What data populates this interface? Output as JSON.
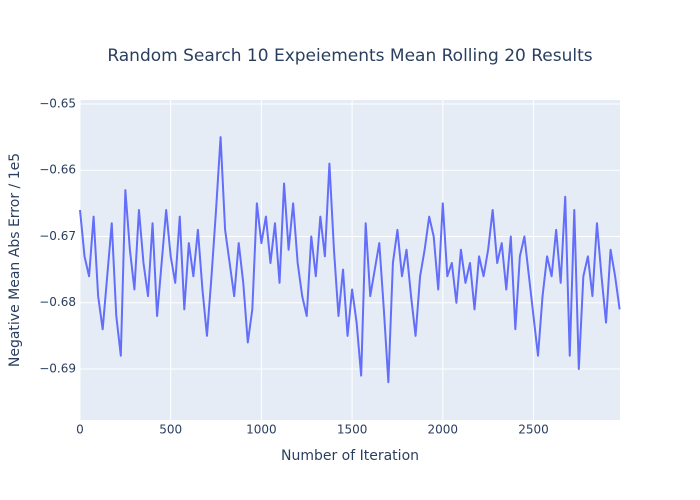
{
  "chart_data": {
    "type": "line",
    "title": "Random Search 10 Expeiements Mean Rolling 20 Results",
    "x_label": "Number of Iteration",
    "y_label": "Negative Mean Abs Error / 1e5",
    "xlim": [
      0,
      2977
    ],
    "ylim": [
      -0.6977,
      -0.6494
    ],
    "xticks": [
      0,
      500,
      1000,
      1500,
      2000,
      2500
    ],
    "yticks": [
      {
        "value": -0.65,
        "label": "−0.65"
      },
      {
        "value": -0.66,
        "label": "−0.66"
      },
      {
        "value": -0.67,
        "label": "−0.67"
      },
      {
        "value": -0.68,
        "label": "−0.68"
      },
      {
        "value": -0.69,
        "label": "−0.69"
      }
    ],
    "grid": true,
    "x": [
      0,
      25,
      50,
      75,
      100,
      125,
      150,
      175,
      200,
      225,
      250,
      275,
      300,
      325,
      350,
      375,
      400,
      425,
      450,
      475,
      500,
      525,
      550,
      575,
      600,
      625,
      650,
      675,
      700,
      725,
      750,
      775,
      800,
      825,
      850,
      875,
      900,
      925,
      950,
      975,
      1000,
      1025,
      1050,
      1075,
      1100,
      1125,
      1150,
      1175,
      1200,
      1225,
      1250,
      1275,
      1300,
      1325,
      1350,
      1375,
      1400,
      1425,
      1450,
      1475,
      1500,
      1525,
      1550,
      1575,
      1600,
      1625,
      1650,
      1675,
      1700,
      1725,
      1750,
      1775,
      1800,
      1825,
      1850,
      1875,
      1900,
      1925,
      1950,
      1975,
      2000,
      2025,
      2050,
      2075,
      2100,
      2125,
      2150,
      2175,
      2200,
      2225,
      2250,
      2275,
      2300,
      2325,
      2350,
      2375,
      2400,
      2425,
      2450,
      2475,
      2500,
      2525,
      2550,
      2575,
      2600,
      2625,
      2650,
      2675,
      2700,
      2725,
      2750,
      2775,
      2800,
      2825,
      2850,
      2875,
      2900,
      2925,
      2950,
      2975
    ],
    "series": [
      {
        "color": "#636efa",
        "values": [
          -0.666,
          -0.673,
          -0.676,
          -0.667,
          -0.679,
          -0.684,
          -0.676,
          -0.668,
          -0.682,
          -0.688,
          -0.663,
          -0.672,
          -0.678,
          -0.666,
          -0.674,
          -0.679,
          -0.668,
          -0.682,
          -0.674,
          -0.666,
          -0.673,
          -0.677,
          -0.667,
          -0.681,
          -0.671,
          -0.676,
          -0.669,
          -0.678,
          -0.685,
          -0.676,
          -0.666,
          -0.655,
          -0.669,
          -0.674,
          -0.679,
          -0.671,
          -0.677,
          -0.686,
          -0.681,
          -0.665,
          -0.671,
          -0.667,
          -0.674,
          -0.668,
          -0.677,
          -0.662,
          -0.672,
          -0.665,
          -0.674,
          -0.679,
          -0.682,
          -0.67,
          -0.676,
          -0.667,
          -0.673,
          -0.659,
          -0.672,
          -0.682,
          -0.675,
          -0.685,
          -0.678,
          -0.683,
          -0.691,
          -0.668,
          -0.679,
          -0.675,
          -0.671,
          -0.681,
          -0.692,
          -0.674,
          -0.669,
          -0.676,
          -0.672,
          -0.679,
          -0.685,
          -0.676,
          -0.672,
          -0.667,
          -0.67,
          -0.678,
          -0.665,
          -0.676,
          -0.674,
          -0.68,
          -0.672,
          -0.677,
          -0.674,
          -0.681,
          -0.673,
          -0.676,
          -0.672,
          -0.666,
          -0.674,
          -0.671,
          -0.678,
          -0.67,
          -0.684,
          -0.673,
          -0.67,
          -0.676,
          -0.682,
          -0.688,
          -0.679,
          -0.673,
          -0.676,
          -0.669,
          -0.677,
          -0.664,
          -0.688,
          -0.666,
          -0.69,
          -0.676,
          -0.673,
          -0.679,
          -0.668,
          -0.676,
          -0.683,
          -0.672,
          -0.676,
          -0.681
        ]
      }
    ]
  }
}
